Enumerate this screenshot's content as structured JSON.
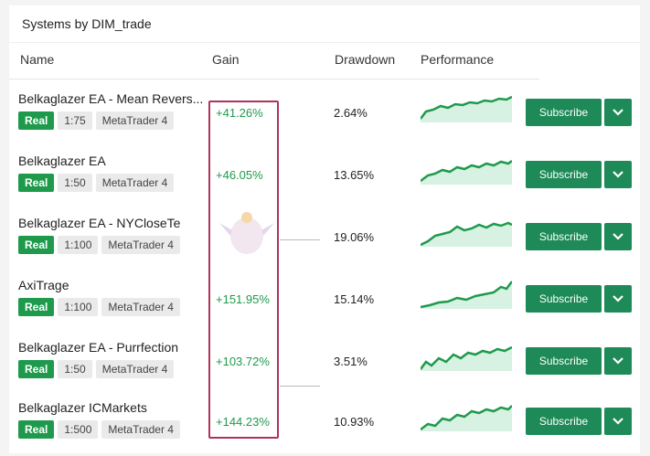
{
  "title": "Systems by DIM_trade",
  "headers": {
    "name": "Name",
    "gain": "Gain",
    "drawdown": "Drawdown",
    "performance": "Performance"
  },
  "subscribe_label": "Subscribe",
  "colors": {
    "accent": "#1e8a57",
    "real": "#1f9a4d",
    "highlight": "#b0335a"
  },
  "rows": [
    {
      "name": "Belkaglazer EA - Mean Revers...",
      "type": "Real",
      "leverage": "1:75",
      "platform": "MetaTrader 4",
      "gain": "+41.26%",
      "drawdown": "2.64%"
    },
    {
      "name": "Belkaglazer EA",
      "type": "Real",
      "leverage": "1:50",
      "platform": "MetaTrader 4",
      "gain": "+46.05%",
      "drawdown": "13.65%"
    },
    {
      "name": "Belkaglazer EA - NYCloseTe",
      "type": "Real",
      "leverage": "1:100",
      "platform": "MetaTrader 4",
      "gain": "",
      "drawdown": "19.06%"
    },
    {
      "name": "AxiTrage",
      "type": "Real",
      "leverage": "1:100",
      "platform": "MetaTrader 4",
      "gain": "+151.95%",
      "drawdown": "15.14%"
    },
    {
      "name": "Belkaglazer EA - Purrfection",
      "type": "Real",
      "leverage": "1:50",
      "platform": "MetaTrader 4",
      "gain": "+103.72%",
      "drawdown": "3.51%"
    },
    {
      "name": "Belkaglazer ICMarkets",
      "type": "Real",
      "leverage": "1:500",
      "platform": "MetaTrader 4",
      "gain": "+144.23%",
      "drawdown": "10.93%"
    }
  ]
}
